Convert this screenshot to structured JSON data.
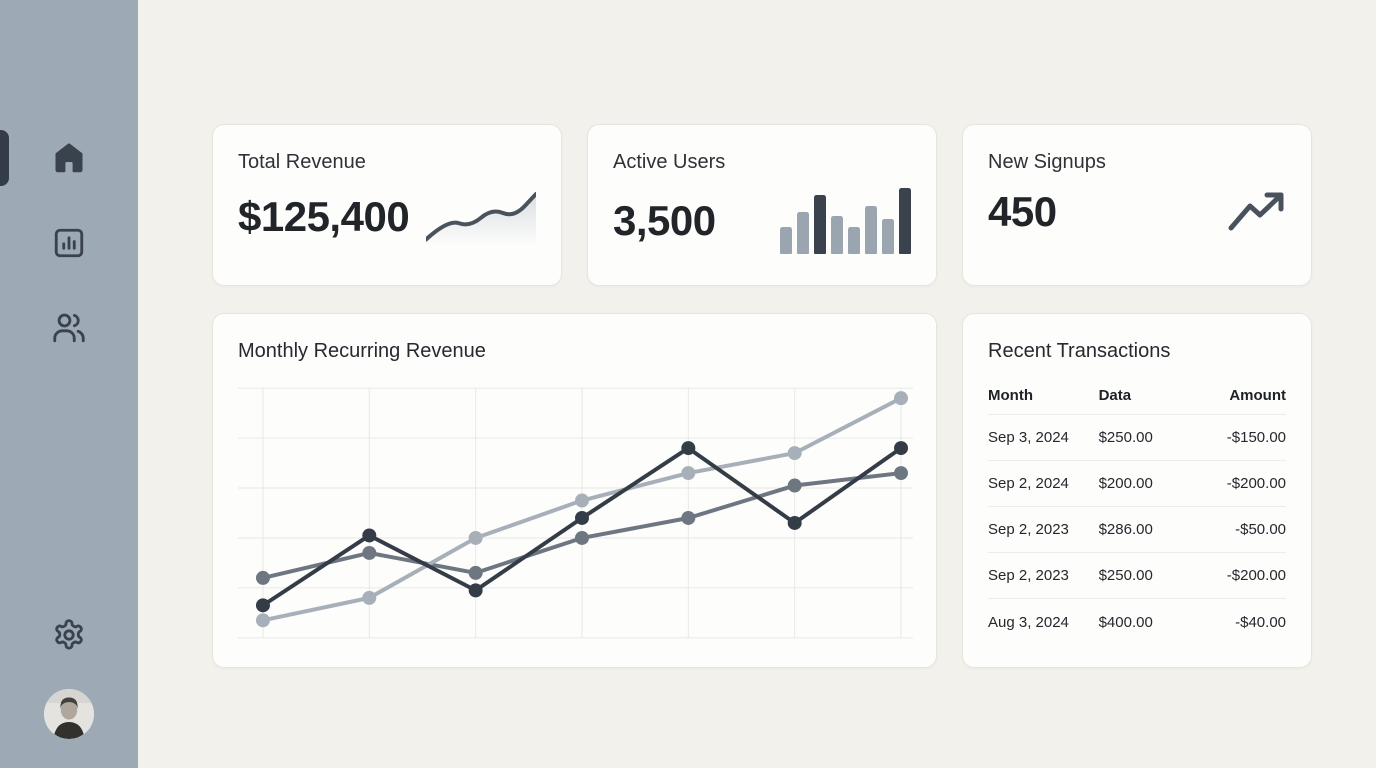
{
  "sidebar": {
    "nav_items": [
      {
        "id": "home",
        "icon": "home-icon",
        "active": true
      },
      {
        "id": "analytics",
        "icon": "bar-chart-icon",
        "active": false
      },
      {
        "id": "users",
        "icon": "users-icon",
        "active": false
      }
    ],
    "bottom_items": [
      {
        "id": "settings",
        "icon": "gear-icon"
      },
      {
        "id": "profile",
        "icon": "avatar"
      }
    ],
    "colors": {
      "bg": "#9DA9B5",
      "icon": "#3A424D",
      "active_indicator": "#343C47"
    }
  },
  "stats": [
    {
      "label": "Total Revenue",
      "value": "$125,400",
      "visual": "sparkline"
    },
    {
      "label": "Active Users",
      "value": "3,500",
      "visual": "mini-bars"
    },
    {
      "label": "New Signups",
      "value": "450",
      "visual": "trending-up-arrow"
    }
  ],
  "chart_card": {
    "title": "Monthly Recurring Revenue"
  },
  "transactions": {
    "title": "Recent Transactions",
    "columns": [
      "Month",
      "Data",
      "Amount"
    ],
    "rows": [
      [
        "Sep 3, 2024",
        "$250.00",
        "-$150.00"
      ],
      [
        "Sep 2, 2024",
        "$200.00",
        "-$200.00"
      ],
      [
        "Sep 2, 2023",
        "$286.00",
        "-$50.00"
      ],
      [
        "Sep 2, 2023",
        "$250.00",
        "-$200.00"
      ],
      [
        "Aug 3, 2024",
        "$400.00",
        "-$40.00"
      ]
    ]
  },
  "chart_data": [
    {
      "type": "line",
      "title": "Monthly Recurring Revenue",
      "x": [
        1,
        2,
        3,
        4,
        5,
        6,
        7
      ],
      "x_tick_labels": "none",
      "series": [
        {
          "name": "series-medium-gray",
          "color": "#6E7781",
          "values": [
            24,
            34,
            26,
            40,
            48,
            61,
            66
          ]
        },
        {
          "name": "series-light-gray",
          "color": "#A7B0B9",
          "values": [
            7,
            16,
            40,
            55,
            66,
            74,
            96
          ]
        },
        {
          "name": "series-dark",
          "color": "#343C47",
          "values": [
            13,
            41,
            19,
            48,
            76,
            46,
            76
          ]
        }
      ],
      "ylim": [
        0,
        100
      ],
      "grid": true,
      "grid_color": "#E8E8E6",
      "legend": "none",
      "markers": "circle"
    },
    {
      "type": "line",
      "title": "Total Revenue sparkline",
      "values": [
        5,
        45,
        30,
        67,
        49,
        96
      ],
      "ylim": [
        0,
        100
      ],
      "color": "#4A525B",
      "fill": "rgba(150,160,170,0.28)"
    },
    {
      "type": "bar",
      "title": "Active Users mini bar chart",
      "values": [
        27,
        42,
        59,
        38,
        27,
        48,
        35,
        66
      ],
      "highlight_indices": [
        2,
        7
      ],
      "bar_color": "#9AA5B0",
      "highlight_color": "#39424D"
    }
  ]
}
